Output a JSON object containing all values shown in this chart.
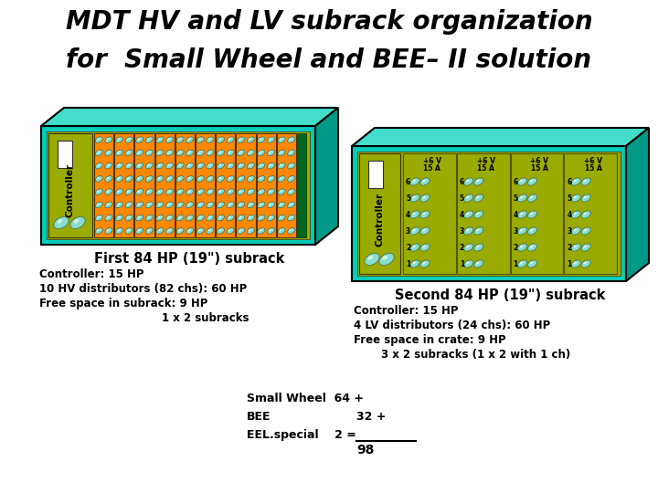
{
  "title_line1": "MDT HV and LV subrack organization",
  "title_line2": "for  Small Wheel and BEE– II solution",
  "title_fontsize": 20,
  "bg_color": "#ffffff",
  "teal_color": "#00CCBB",
  "teal_light": "#44DDCC",
  "teal_dark": "#009988",
  "olive_color": "#99AA00",
  "orange_color": "#FF8800",
  "dark_green_color": "#006622",
  "cyan_connector": "#88DDCC",
  "subrack1_label": "First 84 HP (19\") subrack",
  "subrack2_label": "Second 84 HP (19\") subrack",
  "info1_line1": "Controller: 15 HP",
  "info1_line2": "10 HV distributors (82 chs): 60 HP",
  "info1_line3": "Free space in subrack: 9 HP",
  "info1_line4": "1 x 2 subracks",
  "info2_line1": "Controller: 15 HP",
  "info2_line2": "4 LV distributors (24 chs): 60 HP",
  "info2_line3": "Free space in crate: 9 HP",
  "info2_line4": "3 x 2 subracks (1 x 2 with 1 ch)",
  "bottom_line1": "Small Wheel  64 +",
  "bottom_line2": "BEE",
  "bottom_line3": "EEL.special    2 =",
  "bottom_val1": "32 +",
  "bottom_val2": "98"
}
